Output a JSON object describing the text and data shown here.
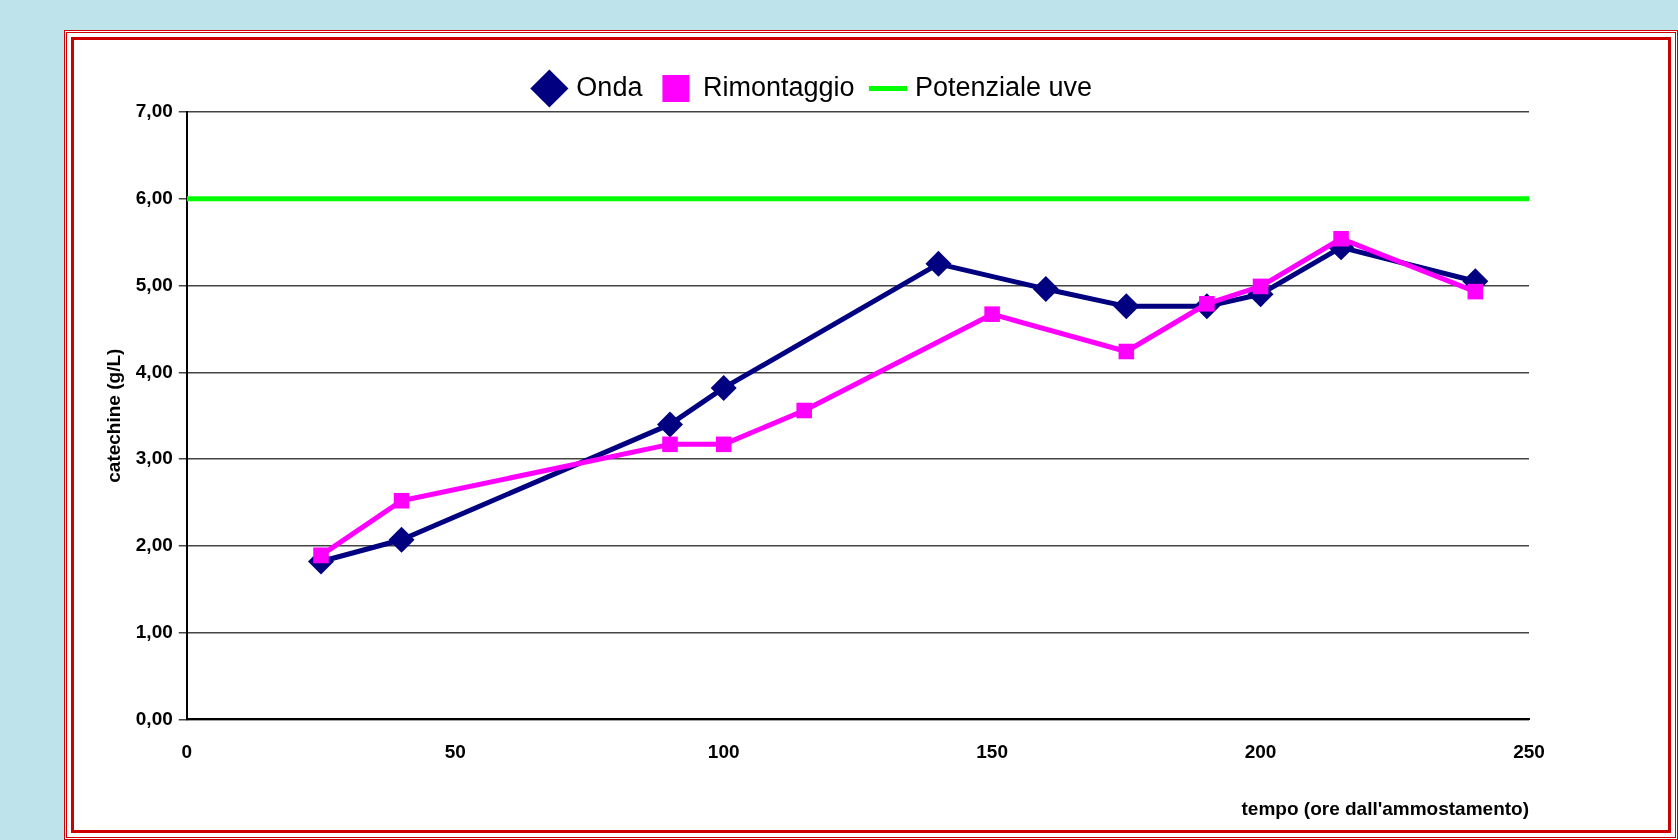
{
  "chart_data": {
    "type": "line",
    "xlabel": "tempo (ore dall'ammostamento)",
    "ylabel": "catechine (g/L)",
    "series": [
      {
        "name": "Onda",
        "color": "#000080",
        "marker": "diamond",
        "x": [
          25,
          40,
          90,
          100,
          140,
          160,
          175,
          190,
          200,
          215,
          240
        ],
        "values": [
          1.82,
          2.07,
          3.4,
          3.82,
          5.25,
          4.96,
          4.76,
          4.76,
          4.9,
          5.44,
          5.05
        ]
      },
      {
        "name": "Rimontaggio",
        "color": "#ff00ff",
        "marker": "square",
        "x": [
          25,
          40,
          90,
          100,
          115,
          150,
          175,
          190,
          200,
          215,
          240
        ],
        "values": [
          1.89,
          2.52,
          3.17,
          3.17,
          3.56,
          4.67,
          4.24,
          4.79,
          4.99,
          5.54,
          4.93
        ]
      },
      {
        "name": "Potenziale uve",
        "color": "#00ff00",
        "marker": "none",
        "x": [
          0,
          250
        ],
        "values": [
          6,
          6
        ]
      }
    ],
    "xlim": [
      0,
      250
    ],
    "xticks": [
      0,
      50,
      100,
      150,
      200,
      250
    ],
    "ylim": [
      0,
      7
    ],
    "yticks": [
      {
        "value": 0,
        "label": "0,00"
      },
      {
        "value": 1,
        "label": "1,00"
      },
      {
        "value": 2,
        "label": "2,00"
      },
      {
        "value": 3,
        "label": "3,00"
      },
      {
        "value": 4,
        "label": "4,00"
      },
      {
        "value": 5,
        "label": "5,00"
      },
      {
        "value": 6,
        "label": "6,00"
      },
      {
        "value": 7,
        "label": "7,00"
      }
    ],
    "grid": "y",
    "legend": "top",
    "line_style": "solid"
  }
}
